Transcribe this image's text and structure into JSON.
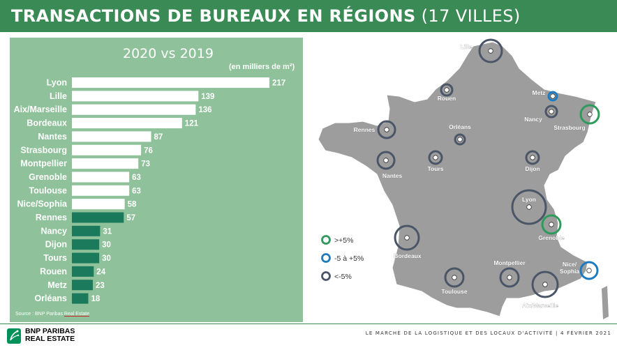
{
  "header": {
    "title_bold": "TRANSACTIONS DE BUREAUX EN RÉGIONS",
    "title_light": "(17 VILLES)"
  },
  "chart": {
    "subtitle": "2020 vs 2019",
    "unit": "(en milliers de m²)",
    "source_prefix": "Source : BNP Paribas ",
    "source_suffix": "Real Estate"
  },
  "chart_data": {
    "type": "bar",
    "orientation": "horizontal",
    "categories": [
      "Lyon",
      "Lille",
      "Aix/Marseille",
      "Bordeaux",
      "Nantes",
      "Strasbourg",
      "Montpellier",
      "Grenoble",
      "Toulouse",
      "Nice/Sophia",
      "Rennes",
      "Nancy",
      "Dijon",
      "Tours",
      "Rouen",
      "Metz",
      "Orléans"
    ],
    "values": [
      217,
      139,
      136,
      121,
      87,
      76,
      73,
      63,
      63,
      58,
      57,
      31,
      30,
      30,
      24,
      23,
      18
    ],
    "bar_colors": [
      "#ffffff",
      "#ffffff",
      "#ffffff",
      "#ffffff",
      "#ffffff",
      "#ffffff",
      "#ffffff",
      "#ffffff",
      "#ffffff",
      "#ffffff",
      "#1b7a5c",
      "#1b7a5c",
      "#1b7a5c",
      "#1b7a5c",
      "#1b7a5c",
      "#1b7a5c",
      "#1b7a5c"
    ],
    "xlim": [
      0,
      217
    ]
  },
  "map": {
    "legend": [
      {
        "label": ">+5%",
        "color": "#2e9a5c"
      },
      {
        "label": "-5 à +5%",
        "color": "#1e7bbf"
      },
      {
        "label": "<-5%",
        "color": "#4a5668"
      }
    ],
    "cities": [
      {
        "name": "Lille",
        "class": "<-5%"
      },
      {
        "name": "Rouen",
        "class": "<-5%"
      },
      {
        "name": "Metz",
        "class": "-5 à +5%"
      },
      {
        "name": "Nancy",
        "class": "<-5%"
      },
      {
        "name": "Strasbourg",
        "class": ">+5%"
      },
      {
        "name": "Rennes",
        "class": "<-5%"
      },
      {
        "name": "Orléans",
        "class": "<-5%"
      },
      {
        "name": "Tours",
        "class": "<-5%"
      },
      {
        "name": "Dijon",
        "class": "<-5%"
      },
      {
        "name": "Nantes",
        "class": "<-5%"
      },
      {
        "name": "Lyon",
        "class": "<-5%"
      },
      {
        "name": "Grenoble",
        "class": ">+5%"
      },
      {
        "name": "Bordeaux",
        "class": "<-5%"
      },
      {
        "name": "Montpellier",
        "class": "<-5%"
      },
      {
        "name": "Nice/ Sophia",
        "class": "-5 à +5%"
      },
      {
        "name": "Toulouse",
        "class": "<-5%"
      },
      {
        "name": "Aix/Marseille",
        "class": "<-5%"
      }
    ]
  },
  "footer": {
    "brand_line1": "BNP PARIBAS",
    "brand_line2": "REAL ESTATE",
    "text": "LE MARCHÉ DE LA LOGISTIQUE ET DES LOCAUX D'ACTIVITÉ | 4 FÉVRIER 2021"
  },
  "colors": {
    "header": "#3a8a55",
    "panel": "#8fc29a",
    "bar_light": "#ffffff",
    "bar_dark": "#1b7a5c",
    "map_fill": "#9d9d9d"
  }
}
